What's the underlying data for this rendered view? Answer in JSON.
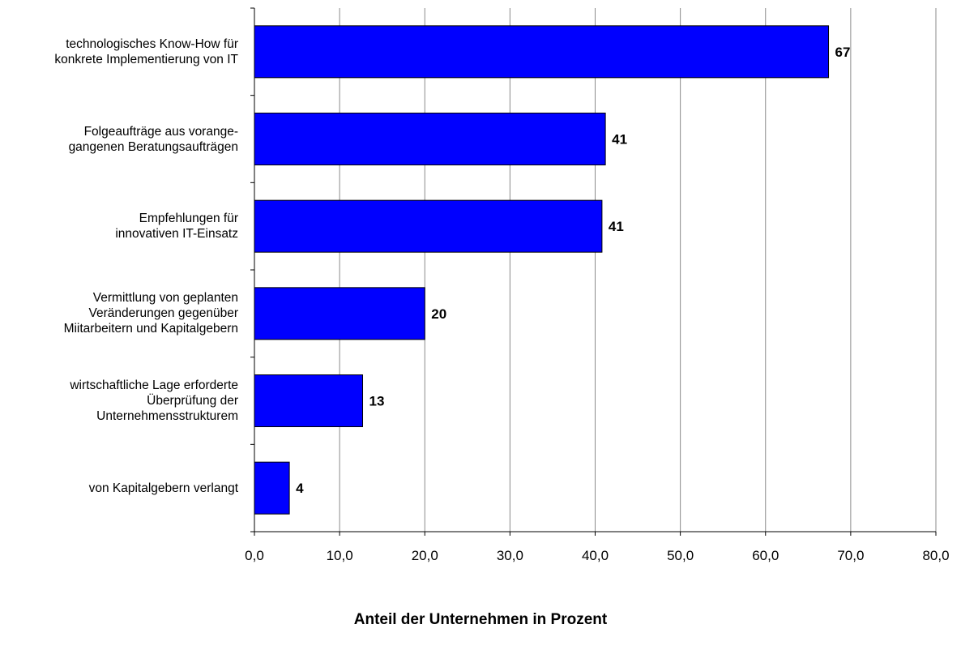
{
  "chart_data": {
    "type": "bar",
    "orientation": "horizontal",
    "categories": [
      "technologisches Know-How für\nkonkrete Implementierung von IT",
      "Folgeaufträge aus vorange-\ngangenen Beratungsaufträgen",
      "Empfehlungen für\ninnovativen IT-Einsatz",
      "Vermittlung von geplanten\nVeränderungen gegenüber\nMiitarbeitern und Kapitalgebern",
      "wirtschaftliche Lage erforderte\nÜberprüfung der\nUnternehmensstrukturem",
      "von Kapitalgebern verlangt"
    ],
    "values": [
      67.4,
      41.2,
      40.8,
      20.0,
      12.7,
      4.1
    ],
    "data_labels": [
      "67",
      "41",
      "41",
      "20",
      "13",
      "4"
    ],
    "xlabel": "Anteil der Unternehmen in Prozent",
    "xlim": [
      0,
      80
    ],
    "xticks": [
      "0,0",
      "10,0",
      "20,0",
      "30,0",
      "40,0",
      "50,0",
      "60,0",
      "70,0",
      "80,0"
    ],
    "grid": "vertical",
    "bar_color": "#0000ff"
  }
}
